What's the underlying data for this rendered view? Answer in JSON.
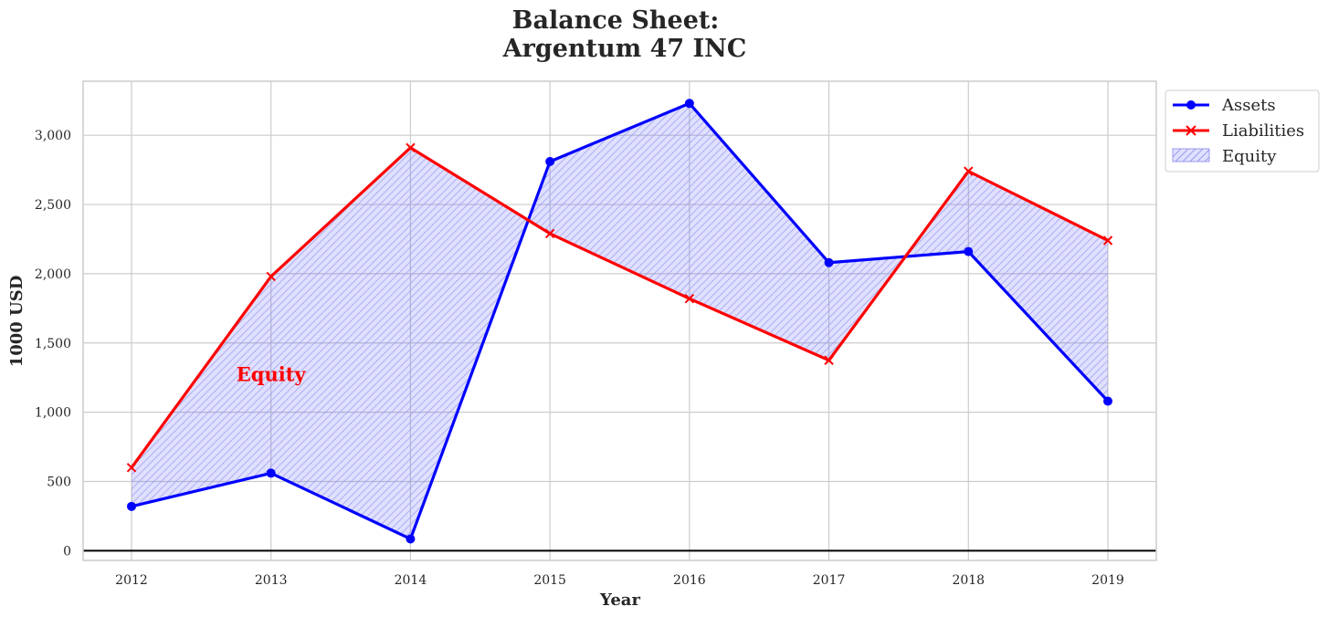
{
  "chart_data": {
    "type": "line",
    "title_line1": "Balance Sheet:",
    "title_line2": "Argentum 47 INC",
    "xlabel": "Year",
    "ylabel": "1000 USD",
    "x": [
      "2012",
      "2013",
      "2014",
      "2015",
      "2016",
      "2017",
      "2018",
      "2019"
    ],
    "ylim": [
      -70,
      3390
    ],
    "yticks": [
      0,
      500,
      1000,
      1500,
      2000,
      2500,
      3000
    ],
    "ytick_labels": [
      "0",
      "500",
      "1,000",
      "1,500",
      "2,000",
      "2,500",
      "3,000"
    ],
    "grid": true,
    "legend_position": "upper right, outside plot",
    "series": [
      {
        "name": "Assets",
        "marker": "circle",
        "color": "#0000ff",
        "values": [
          320,
          560,
          85,
          2810,
          3230,
          2080,
          2160,
          1080
        ]
      },
      {
        "name": "Liabilities",
        "marker": "x",
        "color": "#ff0000",
        "values": [
          600,
          1980,
          2910,
          2290,
          1820,
          1375,
          2740,
          2240
        ]
      }
    ],
    "fill_between": {
      "name": "Equity",
      "between": [
        "Assets",
        "Liabilities"
      ],
      "color": "#0000ff",
      "hatch": "////"
    },
    "annotation": {
      "text": "Equity",
      "x": "2013",
      "y": 1270,
      "color": "#ff0000"
    },
    "hline": {
      "y": 0,
      "color": "#000000"
    }
  }
}
